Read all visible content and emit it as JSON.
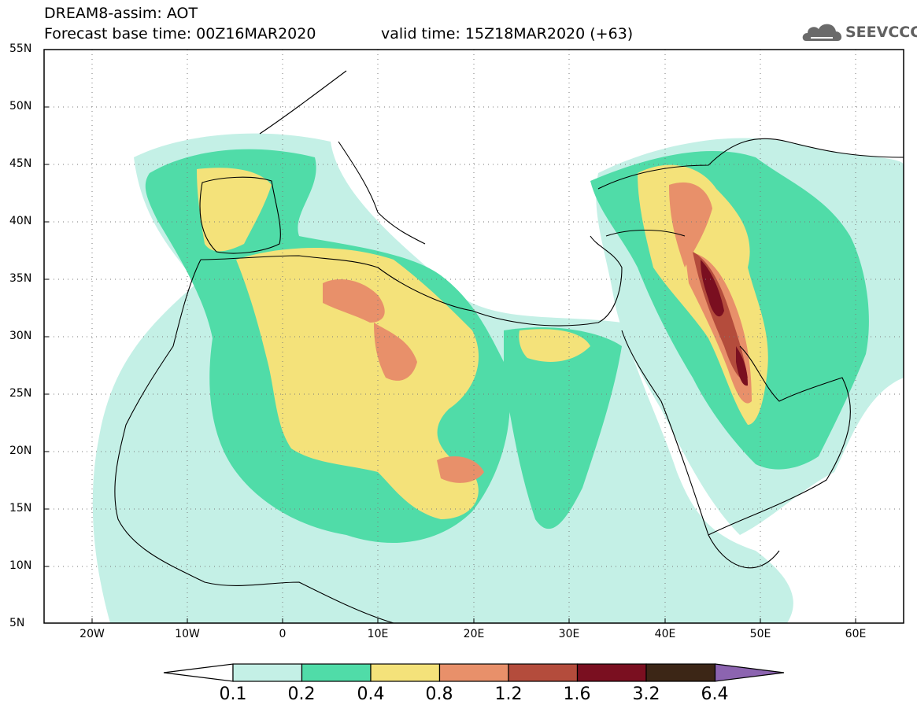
{
  "header": {
    "title": "DREAM8-assim: AOT",
    "base_time": "Forecast base time: 00Z16MAR2020",
    "valid_time": "valid time: 15Z18MAR2020 (+63)"
  },
  "logo": {
    "text": "SEEVCCC",
    "icon": "cloud-icon"
  },
  "map": {
    "lon_range": [
      -25,
      65
    ],
    "lat_range": [
      5,
      55
    ],
    "lat_ticks": [
      {
        "value": 55,
        "label": "55N"
      },
      {
        "value": 50,
        "label": "50N"
      },
      {
        "value": 45,
        "label": "45N"
      },
      {
        "value": 40,
        "label": "40N"
      },
      {
        "value": 35,
        "label": "35N"
      },
      {
        "value": 30,
        "label": "30N"
      },
      {
        "value": 25,
        "label": "25N"
      },
      {
        "value": 20,
        "label": "20N"
      },
      {
        "value": 15,
        "label": "15N"
      },
      {
        "value": 10,
        "label": "10N"
      },
      {
        "value": 5,
        "label": "5N"
      }
    ],
    "lon_ticks": [
      {
        "value": -20,
        "label": "20W"
      },
      {
        "value": -10,
        "label": "10W"
      },
      {
        "value": 0,
        "label": "0"
      },
      {
        "value": 10,
        "label": "10E"
      },
      {
        "value": 20,
        "label": "20E"
      },
      {
        "value": 30,
        "label": "30E"
      },
      {
        "value": 40,
        "label": "40E"
      },
      {
        "value": 50,
        "label": "50E"
      },
      {
        "value": 60,
        "label": "60E"
      }
    ],
    "grid": "dotted"
  },
  "colorbar": {
    "levels": [
      "0.1",
      "0.2",
      "0.4",
      "0.8",
      "1.2",
      "1.6",
      "3.2",
      "6.4"
    ],
    "colors": [
      "#ffffff",
      "#c4f0e6",
      "#50dca8",
      "#f4e27a",
      "#e8906a",
      "#b44c3c",
      "#7a0f20",
      "#3c2616",
      "#8c64b0"
    ]
  }
}
